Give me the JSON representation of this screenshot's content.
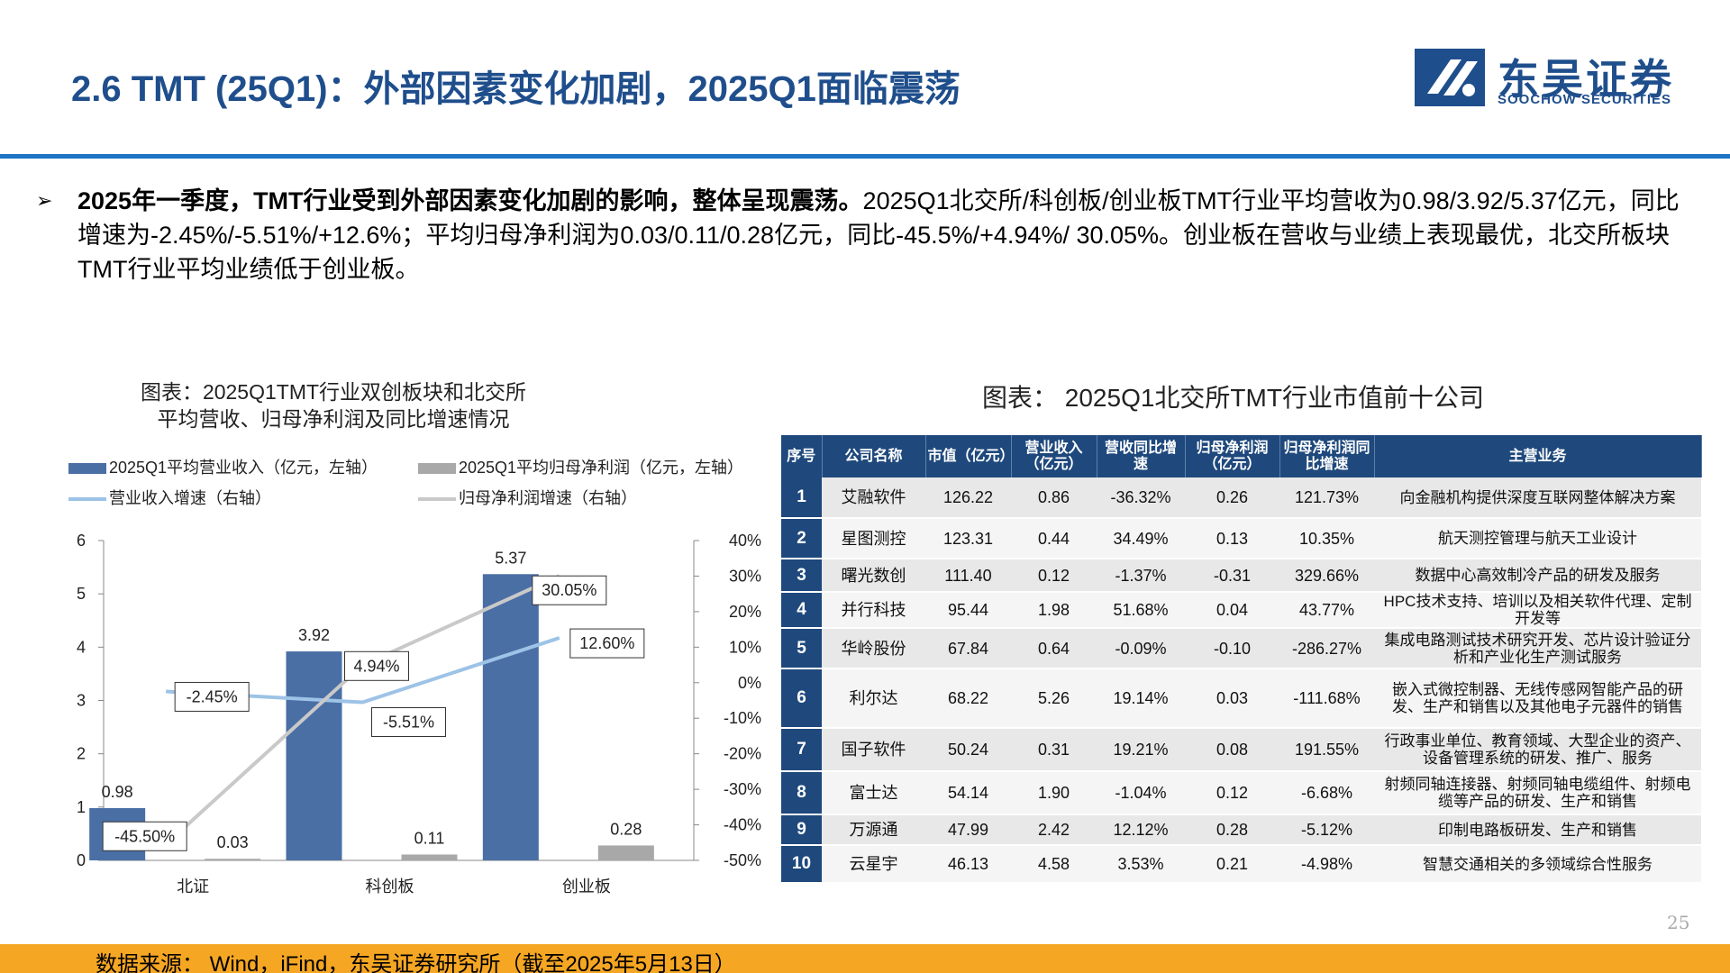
{
  "header": {
    "title": "2.6 TMT (25Q1)：外部因素变化加剧，2025Q1面临震荡",
    "logo_cn": "东吴证券",
    "logo_en": "SOOCHOW SECURITIES"
  },
  "summary": {
    "bullet": "➢",
    "bold_lead": "2025年一季度，TMT行业受到外部因素变化加剧的影响，整体呈现震荡。",
    "text": "2025Q1北交所/科创板/创业板TMT行业平均营收为0.98/3.92/5.37亿元，同比增速为-2.45%/-5.51%/+12.6%；平均归母净利润为0.03/0.11/0.28亿元，同比-45.5%/+4.94%/ 30.05%。创业板在营收与业绩上表现最优，北交所板块TMT行业平均业绩低于创业板。"
  },
  "chart_title": {
    "line1": "图表：2025Q1TMT行业双创板块和北交所",
    "line2": "平均营收、归母净利润及同比增速情况"
  },
  "chart_data": {
    "type": "bar",
    "categories": [
      "北证",
      "科创板",
      "创业板"
    ],
    "series": [
      {
        "name": "2025Q1平均营业收入（亿元，左轴）",
        "kind": "bar",
        "axis": "left",
        "values": [
          0.98,
          3.92,
          5.37
        ],
        "labels": [
          "0.98",
          "3.92",
          "5.37"
        ],
        "color": "#4a6fa5"
      },
      {
        "name": "2025Q1平均归母净利润（亿元，左轴）",
        "kind": "bar",
        "axis": "left",
        "values": [
          0.03,
          0.11,
          0.28
        ],
        "labels": [
          "0.03",
          "0.11",
          "0.28"
        ],
        "color": "#a8a8a8"
      },
      {
        "name": "营业收入增速（右轴）",
        "kind": "line",
        "axis": "right",
        "values": [
          -2.45,
          -5.51,
          12.6
        ],
        "labels": [
          "-2.45%",
          "-5.51%",
          "12.60%"
        ],
        "color": "#9dc3e6"
      },
      {
        "name": "归母净利润增速（右轴）",
        "kind": "line",
        "axis": "right",
        "values": [
          -45.5,
          4.94,
          30.05
        ],
        "labels": [
          "-45.50%",
          "4.94%",
          "30.05%"
        ],
        "color": "#c9c9c9"
      }
    ],
    "y_left": {
      "min": 0,
      "max": 6,
      "ticks": [
        "0",
        "1",
        "2",
        "3",
        "4",
        "5",
        "6"
      ]
    },
    "y_right": {
      "min": -50,
      "max": 40,
      "ticks": [
        "-50%",
        "-40%",
        "-30%",
        "-20%",
        "-10%",
        "0%",
        "10%",
        "20%",
        "30%",
        "40%"
      ]
    },
    "legend_position": "top",
    "grid": false
  },
  "table": {
    "title": "图表： 2025Q1北交所TMT行业市值前十公司",
    "columns": [
      "序号",
      "公司名称",
      "市值（亿元）",
      "营业收入（亿元）",
      "营收同比增速",
      "归母净利润（亿元）",
      "归母净利润同比增速",
      "主营业务"
    ],
    "rows": [
      [
        "1",
        "艾融软件",
        "126.22",
        "0.86",
        "-36.32%",
        "0.26",
        "121.73%",
        "向金融机构提供深度互联网整体解决方案"
      ],
      [
        "2",
        "星图测控",
        "123.31",
        "0.44",
        "34.49%",
        "0.13",
        "10.35%",
        "航天测控管理与航天工业设计"
      ],
      [
        "3",
        "曙光数创",
        "111.40",
        "0.12",
        "-1.37%",
        "-0.31",
        "329.66%",
        "数据中心高效制冷产品的研发及服务"
      ],
      [
        "4",
        "并行科技",
        "95.44",
        "1.98",
        "51.68%",
        "0.04",
        "43.77%",
        "HPC技术支持、培训以及相关软件代理、定制开发等"
      ],
      [
        "5",
        "华岭股份",
        "67.84",
        "0.64",
        "-0.09%",
        "-0.10",
        "-286.27%",
        "集成电路测试技术研究开发、芯片设计验证分析和产业化生产测试服务"
      ],
      [
        "6",
        "利尔达",
        "68.22",
        "5.26",
        "19.14%",
        "0.03",
        "-111.68%",
        "嵌入式微控制器、无线传感网智能产品的研发、生产和销售以及其他电子元器件的销售"
      ],
      [
        "7",
        "国子软件",
        "50.24",
        "0.31",
        "19.21%",
        "0.08",
        "191.55%",
        "行政事业单位、教育领域、大型企业的资产、设备管理系统的研发、推广、服务"
      ],
      [
        "8",
        "富士达",
        "54.14",
        "1.90",
        "-1.04%",
        "0.12",
        "-6.68%",
        "射频同轴连接器、射频同轴电缆组件、射频电缆等产品的研发、生产和销售"
      ],
      [
        "9",
        "万源通",
        "47.99",
        "2.42",
        "12.12%",
        "0.28",
        "-5.12%",
        "印制电路板研发、生产和销售"
      ],
      [
        "10",
        "云星宇",
        "46.13",
        "4.58",
        "3.53%",
        "0.21",
        "-4.98%",
        "智慧交通相关的多领域综合性服务"
      ]
    ]
  },
  "page_number": "25",
  "footer": "数据来源： Wind，iFind，东吴证券研究所（截至2025年5月13日）"
}
